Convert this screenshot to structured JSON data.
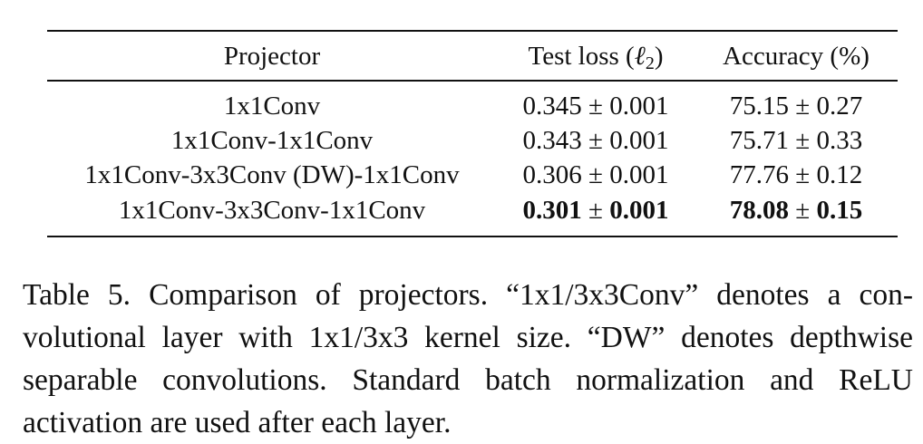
{
  "table": {
    "headers": {
      "projector": "Projector",
      "test_loss_prefix": "Test loss (",
      "test_loss_symbol": "ℓ",
      "test_loss_subscript": "2",
      "test_loss_suffix": ")",
      "accuracy": "Accuracy (%)"
    },
    "pm": "±",
    "rows": [
      {
        "projector": "1x1Conv",
        "loss_mean": "0.345",
        "loss_std": "0.001",
        "acc_mean": "75.15",
        "acc_std": "0.27"
      },
      {
        "projector": "1x1Conv-1x1Conv",
        "loss_mean": "0.343",
        "loss_std": "0.001",
        "acc_mean": "75.71",
        "acc_std": "0.33"
      },
      {
        "projector": "1x1Conv-3x3Conv (DW)-1x1Conv",
        "loss_mean": "0.306",
        "loss_std": "0.001",
        "acc_mean": "77.76",
        "acc_std": "0.12"
      },
      {
        "projector": "1x1Conv-3x3Conv-1x1Conv",
        "loss_mean": "0.301",
        "loss_std": "0.001",
        "acc_mean": "78.08",
        "acc_std": "0.15"
      }
    ]
  },
  "caption": {
    "text": "Table 5. Comparison of projectors. “1x1/3x3Conv” denotes a con­volutional layer with 1x1/3x3 kernel size.  “DW” denotes depth­wise separable convolutions.  Standard batch normalization and ReLU activation are used after each layer."
  }
}
